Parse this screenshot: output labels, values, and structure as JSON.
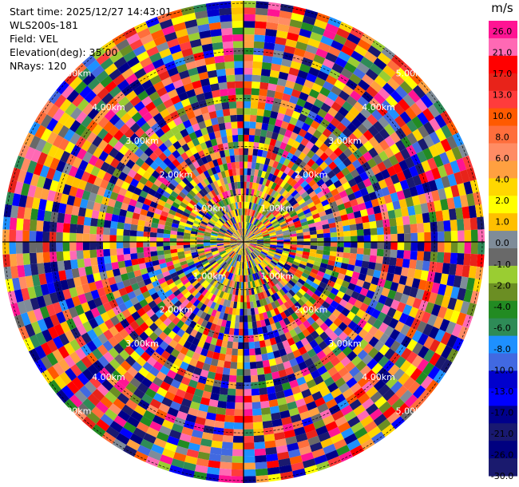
{
  "header": {
    "start_time": "Start time: 2025/12/27 14:43:01",
    "instrument": "WLS200s-181",
    "field": "Field: VEL",
    "elevation": "Elevation(deg): 35.00",
    "nrays": "NRays: 120"
  },
  "range_rings": {
    "labels": [
      "1.00km",
      "2.00km",
      "3.00km",
      "4.00km",
      "5.00km"
    ]
  },
  "colorbar": {
    "unit": "m/s",
    "ticks": [
      "26.0",
      "21.0",
      "17.0",
      "13.0",
      "10.0",
      "8.0",
      "6.0",
      "4.0",
      "2.0",
      "1.0",
      "0.0",
      "-1.0",
      "-2.0",
      "-4.0",
      "-6.0",
      "-8.0",
      "-10.0",
      "-13.0",
      "-17.0",
      "-21.0",
      "-26.0",
      "-30.0"
    ],
    "colors": [
      "#ff1493",
      "#ff69b4",
      "#ff0000",
      "#e8231a",
      "#ff3c3c",
      "#ff5a00",
      "#ff6e3c",
      "#ff8c64",
      "#ffa040",
      "#ffd700",
      "#ffff00",
      "#ffbf00",
      "#7f8c99",
      "#696969",
      "#9acd32",
      "#6b8e23",
      "#228b22",
      "#2e8b57",
      "#1e90ff",
      "#4169e1",
      "#0000cd",
      "#0000ff",
      "#00008b",
      "#191970",
      "#000080",
      "#1a1a6e"
    ]
  }
}
